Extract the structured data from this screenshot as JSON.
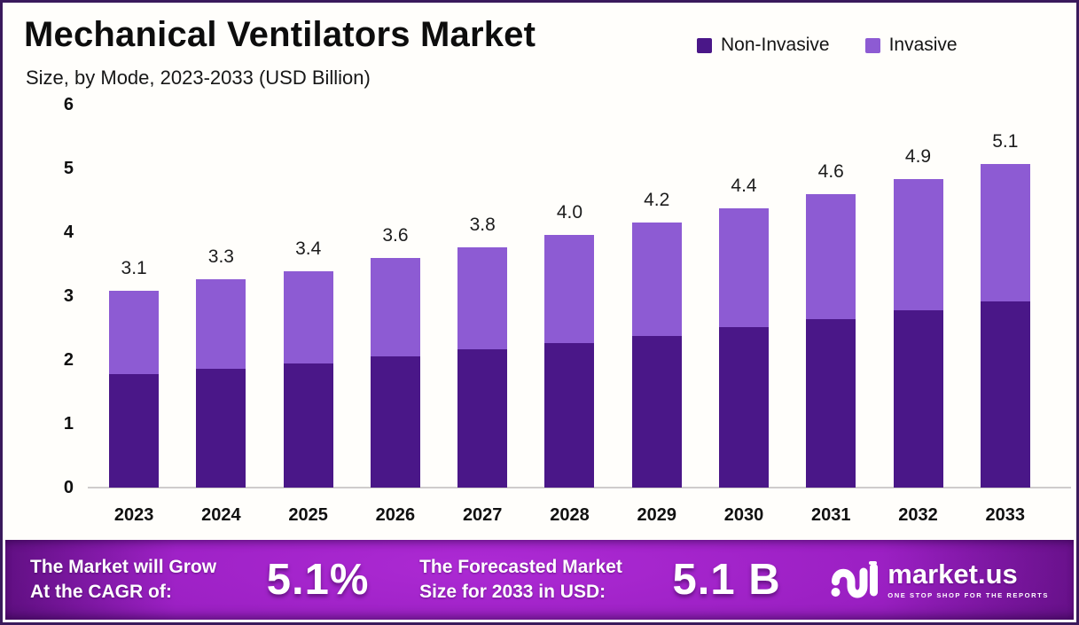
{
  "header": {
    "title": "Mechanical Ventilators Market",
    "subtitle": "Size, by Mode, 2023-2033 (USD Billion)"
  },
  "legend": [
    {
      "label": "Non-Invasive",
      "color": "#4a1788"
    },
    {
      "label": "Invasive",
      "color": "#8d5bd3"
    }
  ],
  "chart_data": {
    "type": "bar",
    "stacked": true,
    "title": "Mechanical Ventilators Market Size, by Mode, 2023-2033 (USD Billion)",
    "categories": [
      "2023",
      "2024",
      "2025",
      "2026",
      "2027",
      "2028",
      "2029",
      "2030",
      "2031",
      "2032",
      "2033"
    ],
    "series": [
      {
        "name": "Non-Invasive",
        "color": "#4a1788",
        "values": [
          1.78,
          1.86,
          1.95,
          2.06,
          2.16,
          2.27,
          2.38,
          2.51,
          2.64,
          2.78,
          2.92
        ]
      },
      {
        "name": "Invasive",
        "color": "#8d5bd3",
        "values": [
          1.3,
          1.4,
          1.45,
          1.54,
          1.6,
          1.7,
          1.78,
          1.86,
          1.96,
          2.06,
          2.15
        ]
      }
    ],
    "totals": [
      3.1,
      3.3,
      3.4,
      3.6,
      3.8,
      4.0,
      4.2,
      4.4,
      4.6,
      4.9,
      5.1
    ],
    "total_labels": [
      "3.1",
      "3.3",
      "3.4",
      "3.6",
      "3.8",
      "4.0",
      "4.2",
      "4.4",
      "4.6",
      "4.9",
      "5.1"
    ],
    "xlabel": "",
    "ylabel": "",
    "ylim": [
      0,
      6
    ],
    "yticks": [
      "0",
      "1",
      "2",
      "3",
      "4",
      "5",
      "6"
    ],
    "grid": false,
    "legend_position": "top-right"
  },
  "footer": {
    "cagr_label_line1": "The Market will Grow",
    "cagr_label_line2": "At the CAGR of:",
    "cagr_value": "5.1%",
    "forecast_label_line1": "The Forecasted Market",
    "forecast_label_line2": "Size for 2033 in USD:",
    "forecast_value": "5.1 B",
    "logo": {
      "name": "market.us",
      "tagline": "ONE STOP SHOP FOR THE REPORTS"
    }
  },
  "colors": {
    "border": "#3a1a5c",
    "background": "#fffefb",
    "banner_bright": "#a524cd",
    "banner_dark": "#5c0e83",
    "axis_line": "#cfcccc",
    "text": "#0d0d0d"
  }
}
